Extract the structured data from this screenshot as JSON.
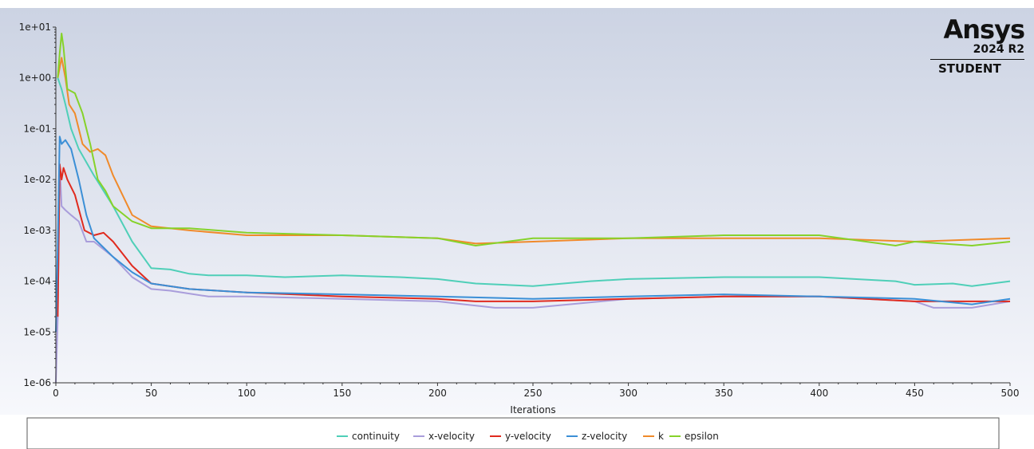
{
  "branding": {
    "logo": "Ansys",
    "version": "2024 R2",
    "edition": "STUDENT"
  },
  "chart_data": {
    "type": "line",
    "title": "",
    "xlabel": "Iterations",
    "ylabel": "",
    "xlim": [
      0,
      500
    ],
    "ylim": [
      1e-06,
      10
    ],
    "yscale": "log",
    "x_ticks": [
      "0",
      "50",
      "100",
      "150",
      "200",
      "250",
      "300",
      "350",
      "400",
      "450",
      "500"
    ],
    "y_ticks": [
      "1e-06",
      "1e-05",
      "1e-04",
      "1e-03",
      "1e-02",
      "1e-01",
      "1e+00",
      "1e+01"
    ],
    "legend_position": "bottom",
    "series": [
      {
        "name": "continuity",
        "color": "#4fcfb8",
        "points": [
          [
            1,
            1.0
          ],
          [
            3,
            0.6
          ],
          [
            5,
            0.3
          ],
          [
            8,
            0.1
          ],
          [
            12,
            0.04
          ],
          [
            20,
            0.012
          ],
          [
            30,
            0.003
          ],
          [
            40,
            0.0006
          ],
          [
            50,
            0.00018
          ],
          [
            60,
            0.00017
          ],
          [
            70,
            0.00014
          ],
          [
            80,
            0.00013
          ],
          [
            100,
            0.00013
          ],
          [
            120,
            0.00012
          ],
          [
            150,
            0.00013
          ],
          [
            180,
            0.00012
          ],
          [
            200,
            0.00011
          ],
          [
            220,
            9e-05
          ],
          [
            250,
            8e-05
          ],
          [
            280,
            0.0001
          ],
          [
            300,
            0.00011
          ],
          [
            350,
            0.00012
          ],
          [
            400,
            0.00012
          ],
          [
            440,
            0.0001
          ],
          [
            450,
            8.5e-05
          ],
          [
            470,
            9e-05
          ],
          [
            480,
            8e-05
          ],
          [
            500,
            0.0001
          ]
        ]
      },
      {
        "name": "x-velocity",
        "color": "#a99ddb",
        "points": [
          [
            0,
            1e-06
          ],
          [
            1,
            2e-05
          ],
          [
            2,
            0.02
          ],
          [
            3,
            0.003
          ],
          [
            5,
            0.0025
          ],
          [
            8,
            0.002
          ],
          [
            12,
            0.0015
          ],
          [
            16,
            0.0006
          ],
          [
            20,
            0.0006
          ],
          [
            30,
            0.0003
          ],
          [
            40,
            0.00012
          ],
          [
            50,
            7e-05
          ],
          [
            60,
            6.5e-05
          ],
          [
            80,
            5e-05
          ],
          [
            100,
            5e-05
          ],
          [
            150,
            4.5e-05
          ],
          [
            200,
            4e-05
          ],
          [
            230,
            3e-05
          ],
          [
            250,
            3e-05
          ],
          [
            300,
            4.5e-05
          ],
          [
            350,
            5e-05
          ],
          [
            400,
            5e-05
          ],
          [
            450,
            4e-05
          ],
          [
            460,
            3e-05
          ],
          [
            480,
            3e-05
          ],
          [
            500,
            4e-05
          ]
        ]
      },
      {
        "name": "y-velocity",
        "color": "#e02a1e",
        "points": [
          [
            1,
            2e-05
          ],
          [
            2,
            0.02
          ],
          [
            3,
            0.01
          ],
          [
            4,
            0.017
          ],
          [
            6,
            0.01
          ],
          [
            10,
            0.005
          ],
          [
            15,
            0.001
          ],
          [
            20,
            0.0008
          ],
          [
            25,
            0.0009
          ],
          [
            30,
            0.0006
          ],
          [
            40,
            0.0002
          ],
          [
            50,
            9e-05
          ],
          [
            70,
            7e-05
          ],
          [
            100,
            6e-05
          ],
          [
            150,
            5e-05
          ],
          [
            200,
            4.5e-05
          ],
          [
            220,
            4e-05
          ],
          [
            250,
            4e-05
          ],
          [
            300,
            4.5e-05
          ],
          [
            350,
            5e-05
          ],
          [
            400,
            5e-05
          ],
          [
            450,
            4e-05
          ],
          [
            480,
            4e-05
          ],
          [
            500,
            4e-05
          ]
        ]
      },
      {
        "name": "z-velocity",
        "color": "#3b8fd6",
        "points": [
          [
            0,
            1e-05
          ],
          [
            1,
            0.0005
          ],
          [
            2,
            0.07
          ],
          [
            3,
            0.05
          ],
          [
            5,
            0.06
          ],
          [
            8,
            0.04
          ],
          [
            12,
            0.01
          ],
          [
            16,
            0.002
          ],
          [
            20,
            0.0007
          ],
          [
            30,
            0.0003
          ],
          [
            40,
            0.00015
          ],
          [
            50,
            9e-05
          ],
          [
            70,
            7e-05
          ],
          [
            100,
            6e-05
          ],
          [
            150,
            5.5e-05
          ],
          [
            200,
            5e-05
          ],
          [
            250,
            4.5e-05
          ],
          [
            300,
            5e-05
          ],
          [
            350,
            5.5e-05
          ],
          [
            400,
            5e-05
          ],
          [
            450,
            4.5e-05
          ],
          [
            480,
            3.5e-05
          ],
          [
            500,
            4.5e-05
          ]
        ]
      },
      {
        "name": "k",
        "color": "#f08a2a",
        "points": [
          [
            1,
            1.0
          ],
          [
            3,
            2.5
          ],
          [
            5,
            1.0
          ],
          [
            7,
            0.3
          ],
          [
            10,
            0.2
          ],
          [
            14,
            0.05
          ],
          [
            18,
            0.035
          ],
          [
            22,
            0.04
          ],
          [
            26,
            0.03
          ],
          [
            30,
            0.012
          ],
          [
            40,
            0.002
          ],
          [
            50,
            0.0012
          ],
          [
            70,
            0.001
          ],
          [
            100,
            0.0008
          ],
          [
            150,
            0.0008
          ],
          [
            200,
            0.0007
          ],
          [
            220,
            0.00055
          ],
          [
            250,
            0.0006
          ],
          [
            300,
            0.0007
          ],
          [
            350,
            0.0007
          ],
          [
            400,
            0.0007
          ],
          [
            450,
            0.0006
          ],
          [
            500,
            0.0007
          ]
        ]
      },
      {
        "name": "epsilon",
        "color": "#86d22a",
        "points": [
          [
            1,
            1.0
          ],
          [
            2,
            3.0
          ],
          [
            3,
            7.5
          ],
          [
            4,
            4.0
          ],
          [
            6,
            0.6
          ],
          [
            10,
            0.5
          ],
          [
            14,
            0.2
          ],
          [
            18,
            0.05
          ],
          [
            22,
            0.01
          ],
          [
            26,
            0.006
          ],
          [
            30,
            0.003
          ],
          [
            40,
            0.0015
          ],
          [
            50,
            0.0011
          ],
          [
            70,
            0.0011
          ],
          [
            100,
            0.0009
          ],
          [
            150,
            0.0008
          ],
          [
            200,
            0.0007
          ],
          [
            220,
            0.0005
          ],
          [
            250,
            0.0007
          ],
          [
            300,
            0.0007
          ],
          [
            350,
            0.0008
          ],
          [
            400,
            0.0008
          ],
          [
            440,
            0.0005
          ],
          [
            450,
            0.0006
          ],
          [
            480,
            0.0005
          ],
          [
            500,
            0.0006
          ]
        ]
      }
    ]
  }
}
